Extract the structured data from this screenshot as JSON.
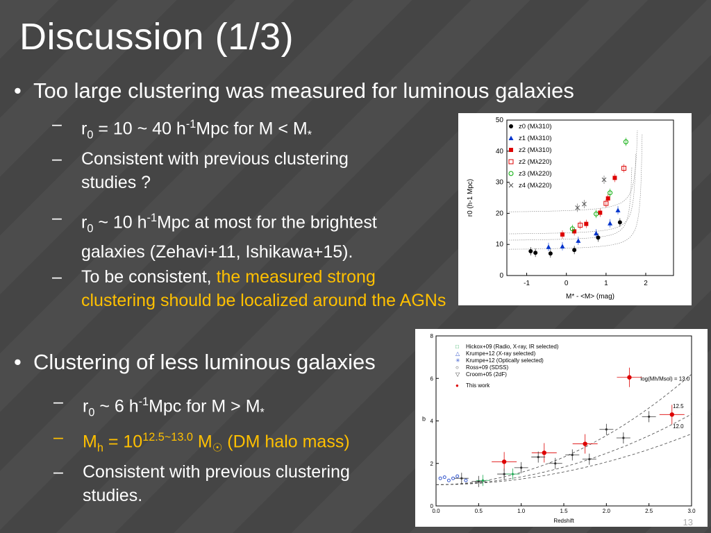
{
  "slide": {
    "title": "Discussion (1/3)",
    "page_number": "13"
  },
  "bullet1": {
    "text": "Too large clustering  was measured for luminous galaxies",
    "s1_a": "r",
    "s1_sub": "0",
    "s1_b": " = 10 ~ 40 h",
    "s1_sup": "-1",
    "s1_c": "Mpc for M < M",
    "s1_star": "*",
    "s2": "Consistent with previous clustering studies ?",
    "s3_a": "r",
    "s3_sub": "0",
    "s3_b": " ~ 10 h",
    "s3_sup": "-1",
    "s3_c": "Mpc at most for the brightest galaxies (Zehavi+11, Ishikawa+15).",
    "s4_a": "To be consistent, ",
    "s4_hl": "the measured strong clustering should be localized around the AGNs"
  },
  "bullet2": {
    "text": "Clustering of less luminous galaxies",
    "s1_a": "r",
    "s1_sub": "0",
    "s1_b": " ~ 6 h",
    "s1_sup": "-1",
    "s1_c": "Mpc for M > M",
    "s1_star": "*",
    "s2_a": "M",
    "s2_sub": "h",
    "s2_b": " = 10",
    "s2_sup": "12.5~13.0",
    "s2_c": " M",
    "s2_sun": "☉",
    "s2_d": " (DM halo mass)",
    "s3": "Consistent with previous clustering studies."
  },
  "chart_data": [
    {
      "type": "scatter",
      "xlabel": "M* - <M> (mag)",
      "ylabel": "r0 (h-1 Mpc)",
      "xlim": [
        -1.5,
        2.7
      ],
      "ylim": [
        0,
        50
      ],
      "xticks": [
        "-1",
        "0",
        "1",
        "2"
      ],
      "yticks": [
        "0",
        "10",
        "20",
        "30",
        "40",
        "50"
      ],
      "legend": [
        "z0 (Mλ310)",
        "z1 (Mλ310)",
        "z2 (Mλ310)",
        "z2 (Mλ220)",
        "z3 (Mλ220)",
        "z4 (Mλ220)"
      ],
      "series": [
        {
          "name": "z0 (Mλ310)",
          "color": "#000000",
          "marker": "circle-filled",
          "x": [
            -0.9,
            -0.78,
            -0.4,
            0.2,
            0.8,
            1.35
          ],
          "y": [
            7.8,
            7.3,
            7.1,
            8.2,
            12.2,
            17.1
          ]
        },
        {
          "name": "z1 (Mλ310)",
          "color": "#0033cc",
          "marker": "triangle-filled",
          "x": [
            -0.45,
            -0.1,
            0.3,
            0.75,
            1.1,
            1.3
          ],
          "y": [
            9.2,
            9.4,
            11.2,
            13.6,
            16.8,
            21.0
          ]
        },
        {
          "name": "z2 (Mλ310)",
          "color": "#dd0000",
          "marker": "square-filled",
          "x": [
            -0.1,
            0.2,
            0.5,
            0.85,
            1.05,
            1.22
          ],
          "y": [
            13.2,
            14.2,
            16.6,
            20.2,
            24.8,
            31.4
          ]
        },
        {
          "name": "z2 (Mλ220)",
          "color": "#dd0000",
          "marker": "square-open",
          "x": [
            0.35,
            1.0,
            1.45
          ],
          "y": [
            16.2,
            23.2,
            34.5
          ]
        },
        {
          "name": "z3 (Mλ220)",
          "color": "#00aa00",
          "marker": "circle-open",
          "x": [
            0.15,
            0.75,
            1.1,
            1.5
          ],
          "y": [
            15.0,
            19.8,
            26.6,
            43.0
          ]
        },
        {
          "name": "z4 (Mλ220)",
          "color": "#555555",
          "marker": "x",
          "x": [
            0.28,
            0.45,
            0.95
          ],
          "y": [
            21.8,
            23.0,
            30.8
          ]
        }
      ]
    },
    {
      "type": "scatter",
      "xlabel": "Redshift",
      "ylabel": "b",
      "xlim": [
        0,
        3
      ],
      "ylim": [
        0,
        8
      ],
      "xticks": [
        "0.0",
        "0.5",
        "1.0",
        "1.5",
        "2.0",
        "2.5",
        "3.0"
      ],
      "yticks": [
        "0",
        "2",
        "4",
        "6",
        "8"
      ],
      "legend": [
        "Hickox+09 (Radio, X-ray, IR selected)",
        "Krumpe+12 (X-ray selected)",
        "Krumpe+12 (Optically selected)",
        "Ross+09 (SDSS)",
        "Croom+05 (2dF)",
        "This work"
      ],
      "curve_labels": [
        "log(Mh/Msol) = 13.0",
        "12.5",
        "12.0"
      ],
      "series": [
        {
          "name": "This work",
          "color": "#dd0000",
          "x": [
            0.8,
            1.27,
            1.75,
            2.27,
            2.77
          ],
          "y": [
            2.08,
            2.5,
            2.92,
            6.05,
            4.3
          ]
        },
        {
          "name": "Croom+05 (2dF)",
          "color": "#333333",
          "x": [
            0.3,
            0.5,
            0.8,
            1.0,
            1.2,
            1.4,
            1.6,
            1.8,
            2.0,
            2.2,
            2.5
          ],
          "y": [
            1.3,
            1.15,
            1.5,
            1.8,
            2.3,
            2.0,
            2.4,
            2.2,
            3.6,
            3.2,
            4.2
          ]
        },
        {
          "name": "Hickox+09 (Radio, X-ray, IR selected)",
          "color": "#22aa55",
          "x": [
            0.55,
            0.9
          ],
          "y": [
            1.2,
            1.5
          ]
        }
      ]
    }
  ]
}
